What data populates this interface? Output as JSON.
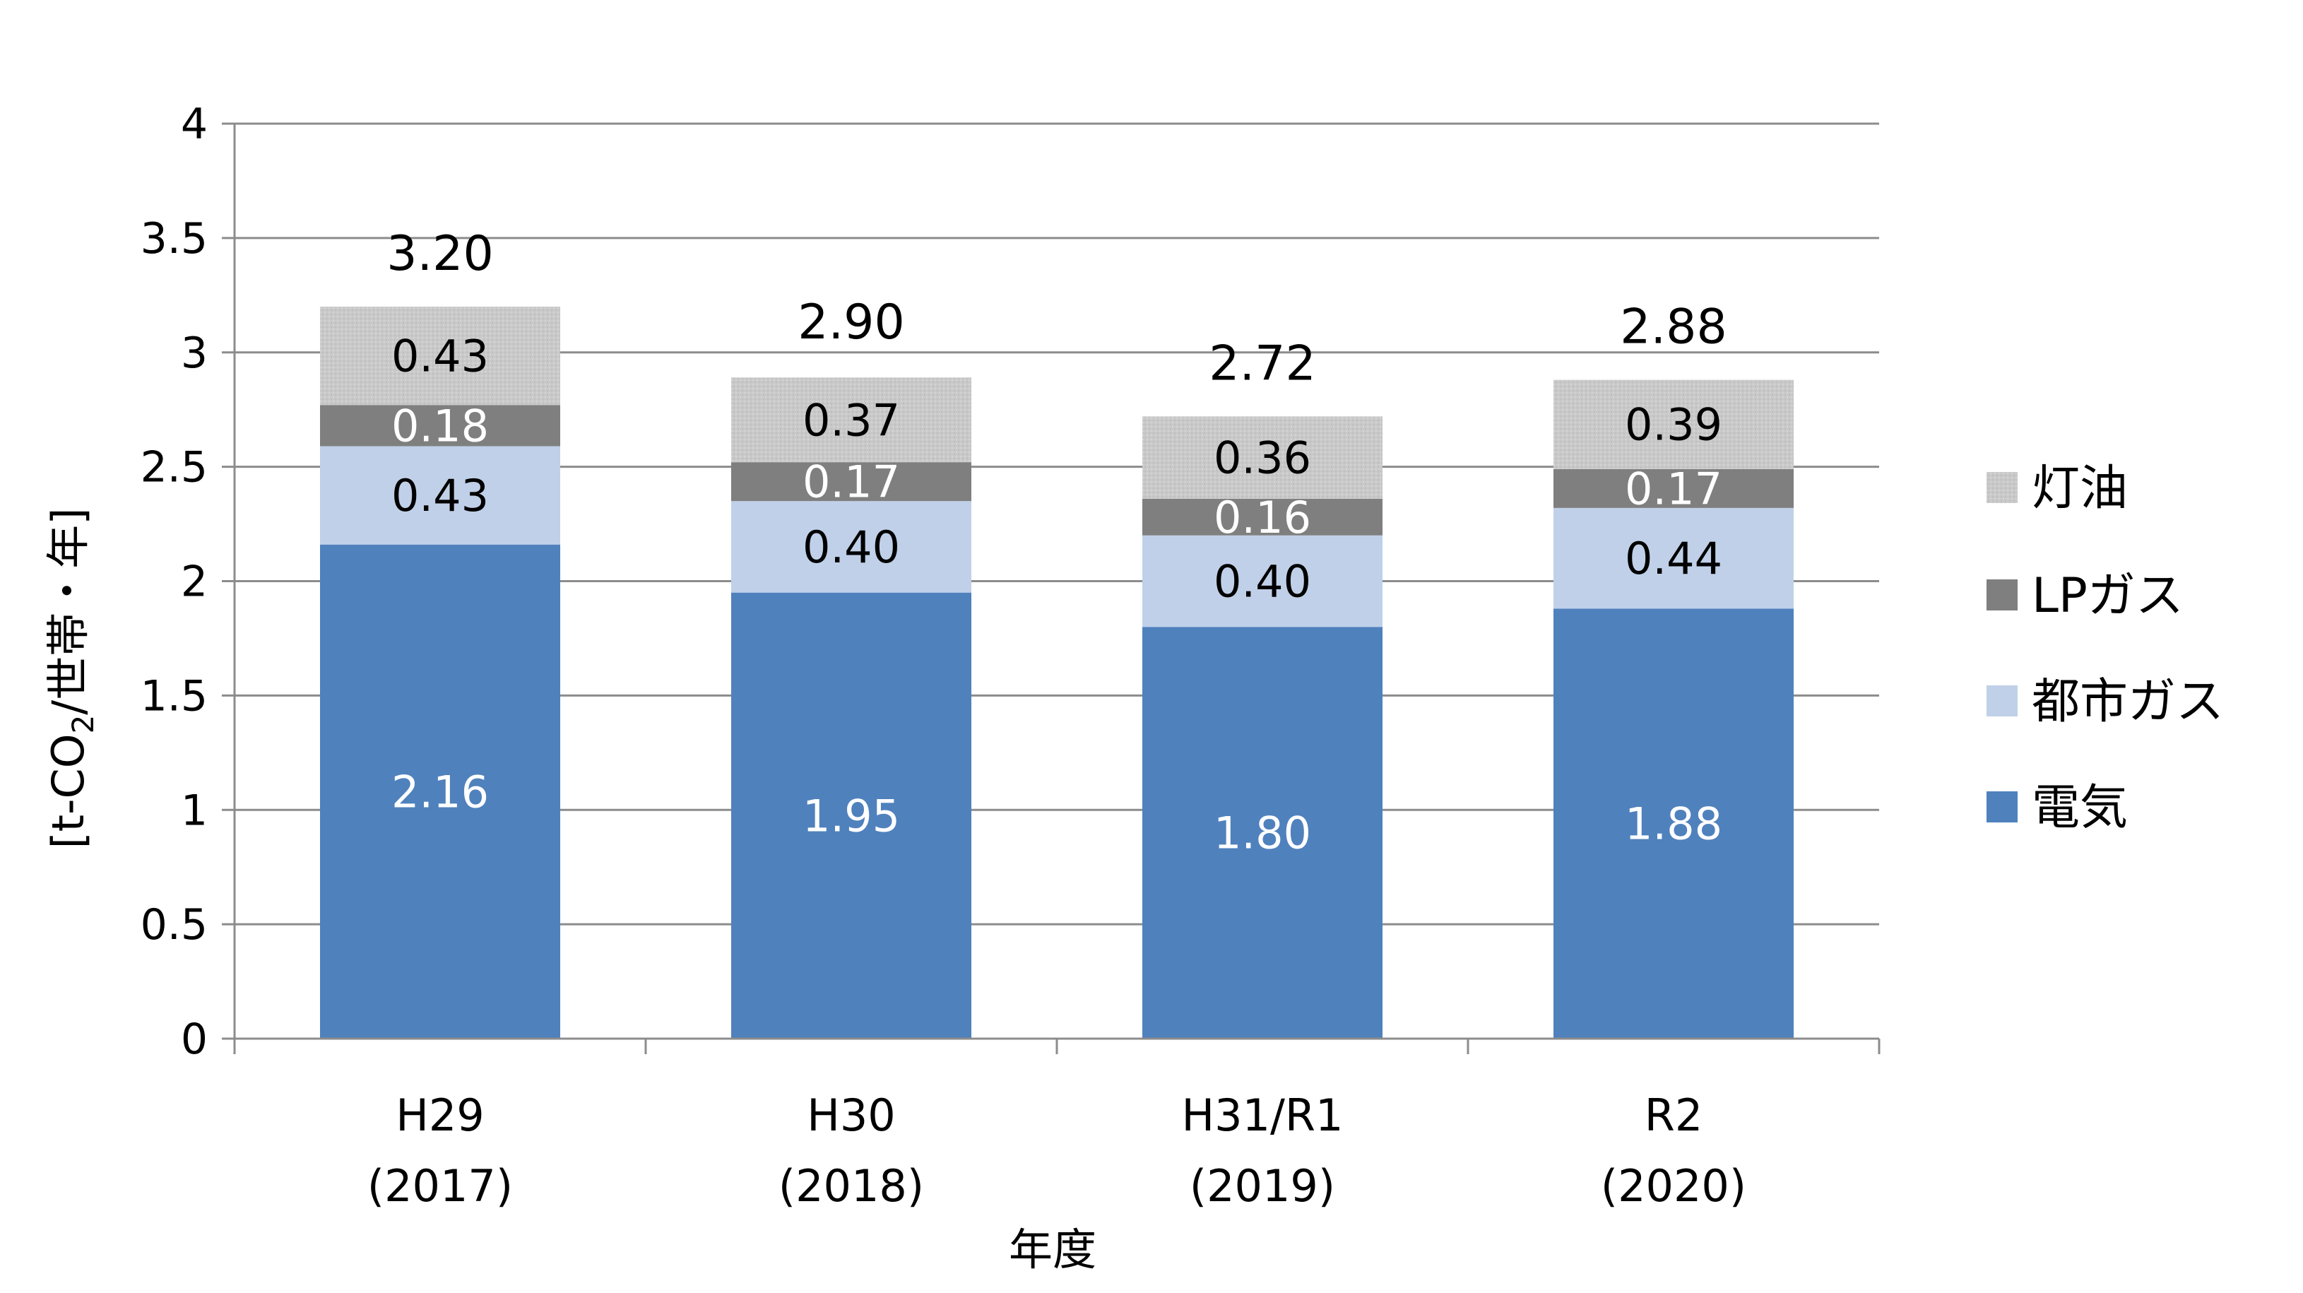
{
  "chart_data": {
    "type": "bar",
    "stacked": true,
    "categories": [
      {
        "line1": "H29",
        "line2": "(2017)"
      },
      {
        "line1": "H30",
        "line2": "(2018)"
      },
      {
        "line1": "H31/R1",
        "line2": "(2019)"
      },
      {
        "line1": "R2",
        "line2": "(2020)"
      }
    ],
    "series": [
      {
        "name": "電気",
        "values": [
          2.16,
          1.95,
          1.8,
          1.88
        ],
        "labels": [
          "2.16",
          "1.95",
          "1.80",
          "1.88"
        ],
        "color": "#4f81bd",
        "label_color": "#ffffff"
      },
      {
        "name": "都市ガス",
        "values": [
          0.43,
          0.4,
          0.4,
          0.44
        ],
        "labels": [
          "0.43",
          "0.40",
          "0.40",
          "0.44"
        ],
        "color": "#c0d0e8",
        "label_color": "#000000"
      },
      {
        "name": "LPガス",
        "values": [
          0.18,
          0.17,
          0.16,
          0.17
        ],
        "labels": [
          "0.18",
          "0.17",
          "0.16",
          "0.17"
        ],
        "color": "#7f7f7f",
        "label_color": "#ffffff"
      },
      {
        "name": "灯油",
        "values": [
          0.43,
          0.37,
          0.36,
          0.39
        ],
        "labels": [
          "0.43",
          "0.37",
          "0.36",
          "0.39"
        ],
        "color": "#c8c8c8",
        "label_color": "#000000"
      }
    ],
    "totals": [
      3.2,
      2.9,
      2.72,
      2.88
    ],
    "total_labels": [
      "3.20",
      "2.90",
      "2.72",
      "2.88"
    ],
    "yticks": [
      "0",
      "0.5",
      "1",
      "1.5",
      "2",
      "2.5",
      "3",
      "3.5",
      "4"
    ],
    "ylim": [
      0,
      4
    ],
    "ylabel": {
      "pre": "[t-CO",
      "sub": "2",
      "post": "/世帯・年]"
    },
    "xlabel": "年度",
    "grid": true,
    "legend_position": "right",
    "legend_order": [
      "灯油",
      "LPガス",
      "都市ガス",
      "電気"
    ]
  }
}
